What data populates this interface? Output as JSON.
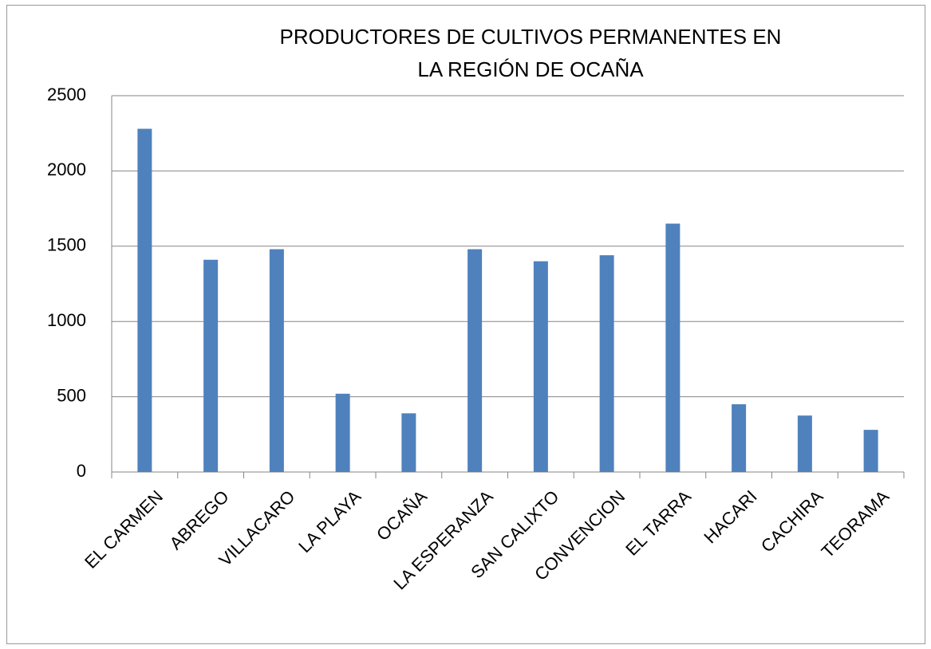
{
  "chart_data": {
    "type": "bar",
    "title": [
      "PRODUCTORES  DE CULTIVOS PERMANENTES  EN",
      "LA REGIÓN DE OCAÑA"
    ],
    "categories": [
      "EL CARMEN",
      "ABREGO",
      "VILLACARO",
      "LA PLAYA",
      "OCAÑA",
      "LA ESPERANZA",
      "SAN CALIXTO",
      "CONVENCION",
      "EL TARRA",
      "HACARI",
      "CACHIRA",
      "TEORAMA"
    ],
    "values": [
      2280,
      1410,
      1480,
      520,
      390,
      1480,
      1400,
      1440,
      1650,
      450,
      375,
      280
    ],
    "color": "#4f81bd",
    "ylim": [
      0,
      2500
    ],
    "yticks": [
      0,
      500,
      1000,
      1500,
      2000,
      2500
    ],
    "grid": true
  }
}
